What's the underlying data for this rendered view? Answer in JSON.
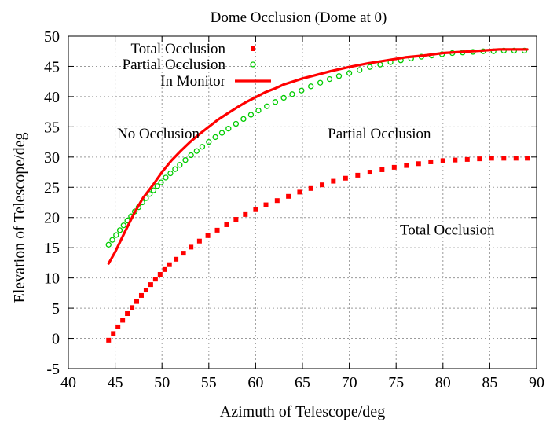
{
  "chart_data": {
    "type": "scatter",
    "title": "Dome Occlusion (Dome at 0)",
    "xlabel": "Azimuth of Telescope/deg",
    "ylabel": "Elevation of Telescope/deg",
    "xlim": [
      40,
      90
    ],
    "ylim": [
      -5,
      50
    ],
    "xticks": [
      40,
      45,
      50,
      55,
      60,
      65,
      70,
      75,
      80,
      85,
      90
    ],
    "yticks": [
      -5,
      0,
      5,
      10,
      15,
      20,
      25,
      30,
      35,
      40,
      45,
      50
    ],
    "grid": true,
    "legend_position": "top-left",
    "series": [
      {
        "name": "Total Occlusion",
        "style": "points",
        "marker": "filled-square",
        "color": "#ff0000",
        "points": [
          [
            44.3,
            -0.3
          ],
          [
            44.8,
            0.8
          ],
          [
            45.3,
            1.9
          ],
          [
            45.8,
            3.0
          ],
          [
            46.3,
            4.1
          ],
          [
            46.8,
            5.1
          ],
          [
            47.3,
            6.1
          ],
          [
            47.8,
            7.1
          ],
          [
            48.3,
            8.0
          ],
          [
            48.8,
            8.9
          ],
          [
            49.3,
            9.8
          ],
          [
            49.8,
            10.6
          ],
          [
            50.3,
            11.4
          ],
          [
            50.8,
            12.2
          ],
          [
            51.5,
            13.1
          ],
          [
            52.3,
            14.1
          ],
          [
            53.1,
            15.1
          ],
          [
            54.0,
            16.1
          ],
          [
            54.9,
            17.0
          ],
          [
            55.9,
            17.9
          ],
          [
            56.9,
            18.8
          ],
          [
            57.9,
            19.7
          ],
          [
            58.9,
            20.5
          ],
          [
            60.0,
            21.3
          ],
          [
            61.1,
            22.1
          ],
          [
            62.3,
            22.8
          ],
          [
            63.5,
            23.5
          ],
          [
            64.7,
            24.2
          ],
          [
            65.9,
            24.8
          ],
          [
            67.1,
            25.4
          ],
          [
            68.3,
            26.0
          ],
          [
            69.6,
            26.5
          ],
          [
            70.9,
            27.0
          ],
          [
            72.2,
            27.5
          ],
          [
            73.5,
            27.9
          ],
          [
            74.8,
            28.3
          ],
          [
            76.1,
            28.6
          ],
          [
            77.4,
            28.9
          ],
          [
            78.7,
            29.2
          ],
          [
            80.0,
            29.4
          ],
          [
            81.3,
            29.5
          ],
          [
            82.6,
            29.6
          ],
          [
            83.9,
            29.7
          ],
          [
            85.2,
            29.8
          ],
          [
            86.5,
            29.8
          ],
          [
            87.8,
            29.8
          ],
          [
            89.0,
            29.8
          ]
        ]
      },
      {
        "name": "Partial Occlusion",
        "style": "points",
        "marker": "open-circle",
        "color": "#00cc00",
        "points": [
          [
            44.3,
            15.5
          ],
          [
            44.7,
            16.3
          ],
          [
            45.1,
            17.1
          ],
          [
            45.5,
            17.9
          ],
          [
            45.9,
            18.7
          ],
          [
            46.3,
            19.5
          ],
          [
            46.7,
            20.2
          ],
          [
            47.1,
            21.0
          ],
          [
            47.5,
            21.7
          ],
          [
            47.9,
            22.5
          ],
          [
            48.3,
            23.2
          ],
          [
            48.7,
            23.9
          ],
          [
            49.1,
            24.5
          ],
          [
            49.5,
            25.2
          ],
          [
            49.9,
            25.8
          ],
          [
            50.4,
            26.6
          ],
          [
            50.9,
            27.3
          ],
          [
            51.4,
            28.0
          ],
          [
            51.9,
            28.7
          ],
          [
            52.5,
            29.5
          ],
          [
            53.1,
            30.3
          ],
          [
            53.7,
            31.0
          ],
          [
            54.3,
            31.7
          ],
          [
            55.0,
            32.5
          ],
          [
            55.7,
            33.3
          ],
          [
            56.4,
            34.0
          ],
          [
            57.1,
            34.7
          ],
          [
            57.9,
            35.5
          ],
          [
            58.7,
            36.3
          ],
          [
            59.5,
            37.0
          ],
          [
            60.3,
            37.7
          ],
          [
            61.2,
            38.4
          ],
          [
            62.1,
            39.1
          ],
          [
            63.0,
            39.8
          ],
          [
            63.9,
            40.4
          ],
          [
            64.9,
            41.0
          ],
          [
            65.9,
            41.7
          ],
          [
            66.9,
            42.3
          ],
          [
            67.9,
            42.9
          ],
          [
            68.9,
            43.4
          ],
          [
            70.0,
            43.9
          ],
          [
            71.1,
            44.4
          ],
          [
            72.2,
            44.9
          ],
          [
            73.3,
            45.3
          ],
          [
            74.4,
            45.7
          ],
          [
            75.5,
            46.0
          ],
          [
            76.6,
            46.3
          ],
          [
            77.7,
            46.6
          ],
          [
            78.8,
            46.8
          ],
          [
            79.9,
            47.0
          ],
          [
            81.0,
            47.2
          ],
          [
            82.1,
            47.3
          ],
          [
            83.2,
            47.4
          ],
          [
            84.3,
            47.5
          ],
          [
            85.4,
            47.5
          ],
          [
            86.5,
            47.6
          ],
          [
            87.6,
            47.6
          ],
          [
            88.7,
            47.6
          ]
        ]
      },
      {
        "name": "In Monitor",
        "style": "line",
        "color": "#ff0000",
        "points": [
          [
            44.3,
            12.4
          ],
          [
            45.0,
            14.3
          ],
          [
            46.0,
            17.5
          ],
          [
            47.0,
            20.6
          ],
          [
            48.0,
            23.3
          ],
          [
            49.0,
            25.3
          ],
          [
            50.0,
            27.5
          ],
          [
            51.0,
            29.4
          ],
          [
            52.0,
            31.0
          ],
          [
            53.0,
            32.5
          ],
          [
            54.0,
            33.8
          ],
          [
            55.0,
            35.0
          ],
          [
            56.0,
            36.2
          ],
          [
            57.0,
            37.2
          ],
          [
            58.0,
            38.2
          ],
          [
            59.0,
            39.1
          ],
          [
            60.0,
            39.9
          ],
          [
            61.0,
            40.7
          ],
          [
            62.0,
            41.3
          ],
          [
            63.0,
            42.0
          ],
          [
            64.0,
            42.5
          ],
          [
            65.0,
            43.0
          ],
          [
            66.0,
            43.4
          ],
          [
            68.0,
            44.2
          ],
          [
            70.0,
            44.9
          ],
          [
            72.0,
            45.5
          ],
          [
            74.0,
            46.0
          ],
          [
            76.0,
            46.5
          ],
          [
            78.0,
            46.8
          ],
          [
            80.0,
            47.2
          ],
          [
            82.0,
            47.4
          ],
          [
            84.0,
            47.6
          ],
          [
            86.0,
            47.8
          ],
          [
            88.0,
            47.8
          ],
          [
            89.0,
            47.8
          ]
        ]
      }
    ],
    "annotations": [
      {
        "text": "No Occlusion",
        "x": 45.2,
        "y": 33.1
      },
      {
        "text": "Partial Occlusion",
        "x": 67.7,
        "y": 33.1
      },
      {
        "text": "Total Occlusion",
        "x": 75.4,
        "y": 17.2
      }
    ]
  }
}
